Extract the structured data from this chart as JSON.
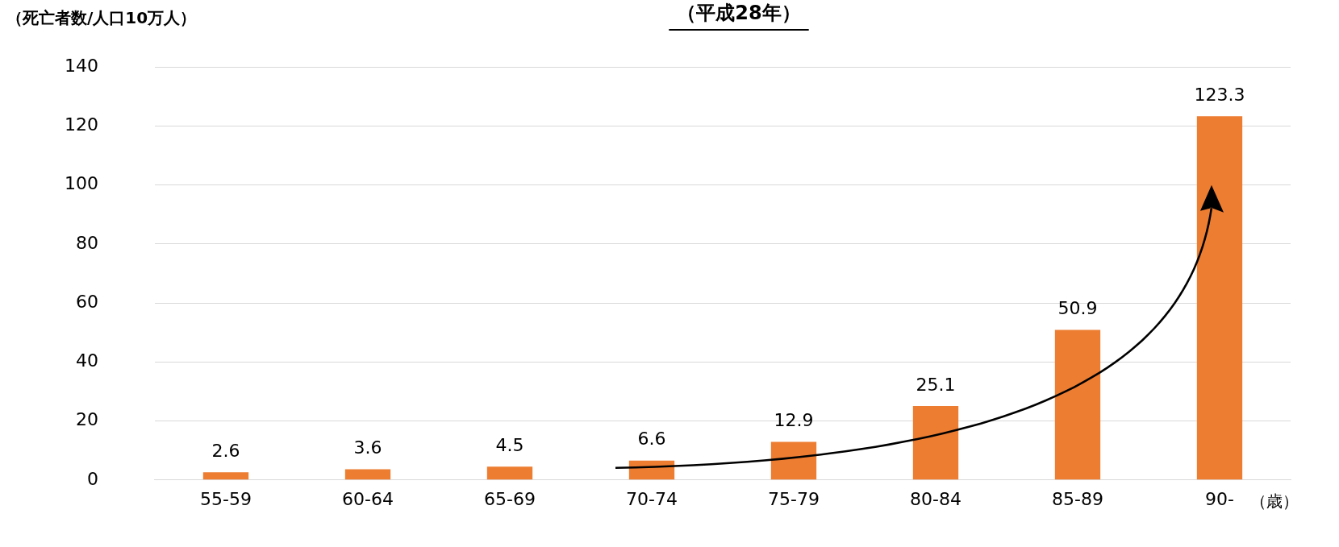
{
  "chart_data": {
    "type": "bar",
    "title": "（平成28年）",
    "ylabel": "（死亡者数/人口10万人）",
    "xlabel": "（歳）",
    "categories": [
      "55-59",
      "60-64",
      "65-69",
      "70-74",
      "75-79",
      "80-84",
      "85-89",
      "90-"
    ],
    "values": [
      2.6,
      3.6,
      4.5,
      6.6,
      12.9,
      25.1,
      50.9,
      123.3
    ],
    "color": "#ed7d31",
    "ylim": [
      0,
      140
    ],
    "yticks": [
      0,
      20,
      40,
      60,
      80,
      100,
      120,
      140
    ],
    "grid": "y",
    "data_labels": true,
    "legend": false
  }
}
